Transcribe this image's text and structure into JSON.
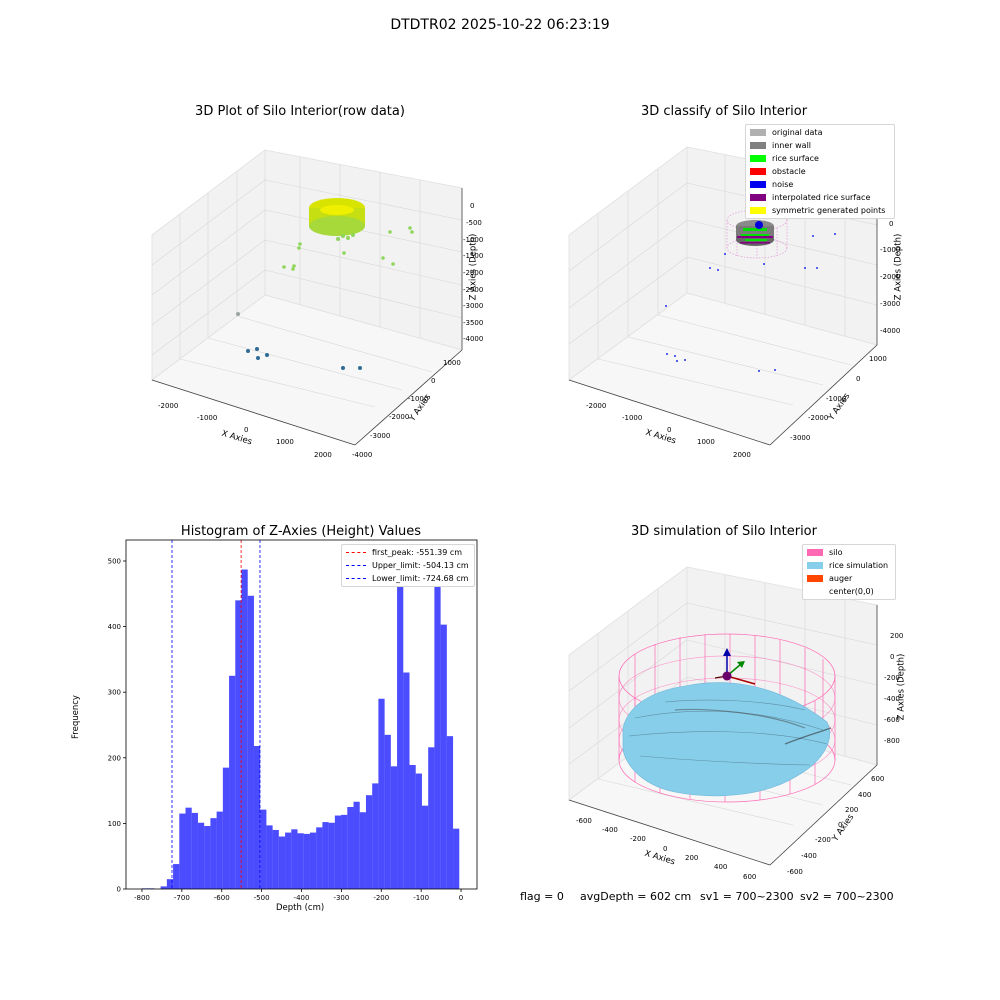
{
  "figure": {
    "suptitle": "DTDTR02 2025-10-22 06:23:19",
    "footer": {
      "flag": "flag = 0",
      "avg_depth": "avgDepth = 602 cm",
      "sv1": "sv1 = 700~2300",
      "sv2": "sv2 = 700~2300"
    }
  },
  "plot1": {
    "title": "3D Plot of Silo Interior(row data)",
    "xlabel": "X Axies",
    "ylabel": "Y Axies",
    "zlabel": "Z Axies (Depth)",
    "xticks": [
      "-2000",
      "-1000",
      "0",
      "1000",
      "2000"
    ],
    "yticks": [
      "-4000",
      "-3000",
      "-2000",
      "-1000",
      "0",
      "1000"
    ],
    "zticks": [
      "0",
      "-500",
      "-1000",
      "-1500",
      "-2000",
      "-2500",
      "-3000",
      "-3500",
      "-4000"
    ]
  },
  "plot2": {
    "title": "3D classify of Silo Interior",
    "xlabel": "X Axies",
    "ylabel": "Y Axies",
    "zlabel": "Z Axies (Depth)",
    "xticks": [
      "-2000",
      "-1000",
      "0",
      "1000",
      "2000"
    ],
    "yticks": [
      "-3000",
      "-2000",
      "-1000",
      "0",
      "1000"
    ],
    "zticks": [
      "0",
      "-1000",
      "-2000",
      "-3000",
      "-4000"
    ],
    "legend": [
      {
        "label": "original data",
        "color": "#b0b0b0"
      },
      {
        "label": "inner wall",
        "color": "#808080"
      },
      {
        "label": "rice surface",
        "color": "#00ff00"
      },
      {
        "label": "obstacle",
        "color": "#ff0000"
      },
      {
        "label": "noise",
        "color": "#0000ee"
      },
      {
        "label": "interpolated rice surface",
        "color": "#800080"
      },
      {
        "label": "symmetric generated points",
        "color": "#ffff00"
      }
    ]
  },
  "plot4": {
    "title": "3D simulation of Silo Interior",
    "xlabel": "X Axies",
    "ylabel": "Y Axies",
    "zlabel": "Z Axies (Depth)",
    "xticks": [
      "-600",
      "-400",
      "-200",
      "0",
      "200",
      "400",
      "600"
    ],
    "yticks": [
      "-600",
      "-400",
      "-200",
      "0",
      "200",
      "400",
      "600"
    ],
    "zticks": [
      "200",
      "0",
      "-200",
      "-400",
      "-600",
      "-800"
    ],
    "legend": [
      {
        "label": "silo",
        "color": "#ff69b4"
      },
      {
        "label": "rice simulation",
        "color": "#87ceeb"
      },
      {
        "label": "auger",
        "color": "#ff4500"
      },
      {
        "label": "center(0,0)",
        "color": "#ffffff"
      }
    ]
  },
  "chart_data": [
    {
      "type": "histogram",
      "title": "Histogram of Z-Axies (Height) Values",
      "xlabel": "Depth (cm)",
      "ylabel": "Frequency",
      "xlim": [
        -840,
        40
      ],
      "ylim": [
        0,
        532
      ],
      "xticks": [
        -800,
        -700,
        -600,
        -500,
        -400,
        -300,
        -200,
        -100,
        0
      ],
      "yticks": [
        0,
        100,
        200,
        300,
        400,
        500
      ],
      "bin_start": -800,
      "bin_width": 15.6,
      "bar_color": "#0000ff",
      "values": [
        1,
        1,
        0,
        4,
        15,
        38,
        115,
        124,
        116,
        101,
        96,
        108,
        118,
        185,
        325,
        440,
        487,
        447,
        218,
        121,
        97,
        90,
        80,
        86,
        91,
        85,
        84,
        86,
        94,
        102,
        101,
        112,
        113,
        125,
        133,
        117,
        143,
        161,
        290,
        235,
        187,
        504,
        330,
        189,
        176,
        127,
        216,
        497,
        403,
        233,
        92
      ],
      "lines": [
        {
          "label": "first_peak: -551.39 cm",
          "x": -551.39,
          "color": "#ff0000"
        },
        {
          "label": "Upper_limit: -504.13 cm",
          "x": -504.13,
          "color": "#0000ff"
        },
        {
          "label": "Lower_limit: -724.68 cm",
          "x": -724.68,
          "color": "#0000ff"
        }
      ],
      "legend_position": "top-right"
    }
  ]
}
